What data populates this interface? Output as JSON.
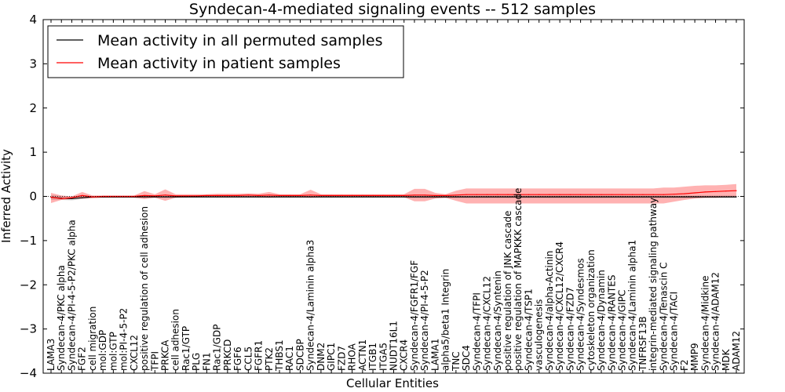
{
  "chart_data": {
    "type": "line",
    "title": "Syndecan-4-mediated signaling events -- 512 samples",
    "xlabel": "Cellular Entities",
    "ylabel": "Inferred Activity",
    "ylim": [
      -4,
      4
    ],
    "yticks": [
      4,
      3,
      2,
      1,
      0,
      -1,
      -2,
      -3,
      -4
    ],
    "ytick_labels": [
      "4",
      "3",
      "2",
      "1",
      "0",
      "−1",
      "−2",
      "−3",
      "−4"
    ],
    "legend": {
      "placement": "top-left",
      "entries": [
        {
          "label": "Mean activity in all permuted samples",
          "color": "#000000"
        },
        {
          "label": "Mean activity in patient samples",
          "color": "#ff0000"
        }
      ]
    },
    "categories": [
      "LAMA3",
      "Syndecan-4/PKC alpha",
      "Syndecan-4/PI-4-5-P2/PKC alpha",
      "FGF2",
      "cell migration",
      "mol:GDP",
      "mol:GTP",
      "mol:PI-4-5-P2",
      "CXCL12",
      "positive regulation of cell adhesion",
      "TFPI",
      "PRKCA",
      "cell adhesion",
      "Rac1/GTP",
      "PLG",
      "FN1",
      "Rac1/GDP",
      "PRKCD",
      "FGF6",
      "CCL5",
      "FGFR1",
      "PTK2",
      "THBS1",
      "RAC1",
      "SDCBP",
      "Syndecan-4/Laminin alpha3",
      "DNM2",
      "GIPC1",
      "FZD7",
      "RHOA",
      "ACTN1",
      "ITGB1",
      "ITGA5",
      "NUDT16L1",
      "CXCR4",
      "Syndecan-4/FGFR1/FGF",
      "Syndecan-4/PI-4-5-P2",
      "LAMA1",
      "alpha5/beta1 Integrin",
      "TNC",
      "SDC4",
      "Syndecan-4/TFPI",
      "Syndecan-4/CXCL12",
      "Syndecan-4/Syntenin",
      "positive regulation of JNK cascade",
      "positive regulation of MAPKKK cascade",
      "Syndecan-4/TSP1",
      "vasculogenesis",
      "Syndecan-4/alpha-Actinin",
      "Syndecan-4/CXCL12/CXCR4",
      "Syndecan-4/FZD7",
      "Syndecan-4/Syndesmos",
      "cytoskeleton organization",
      "Syndecan-4/Dynamin",
      "Syndecan-4/RANTES",
      "Syndecan-4/GIPC",
      "Syndecan-4/Laminin alpha1",
      "TNFRSF13B",
      "integrin-mediated signaling pathway",
      "Syndecan-4/Tenascin C",
      "Syndecan-4/TACI",
      "F2",
      "MMP9",
      "Syndecan-4/Midkine",
      "Syndecan-4/ADAM12",
      "MDK",
      "ADAM12"
    ],
    "series": [
      {
        "name": "Mean activity in all permuted samples",
        "color": "#000000",
        "values": [
          -0.02,
          -0.04,
          -0.05,
          -0.03,
          -0.01,
          -0.01,
          -0.01,
          -0.01,
          -0.01,
          -0.01,
          -0.01,
          -0.01,
          -0.01,
          -0.01,
          -0.01,
          -0.01,
          -0.01,
          -0.01,
          -0.01,
          -0.01,
          -0.01,
          -0.01,
          -0.01,
          -0.01,
          -0.01,
          -0.01,
          -0.01,
          -0.01,
          -0.01,
          -0.01,
          -0.01,
          -0.01,
          -0.01,
          -0.01,
          -0.01,
          -0.01,
          -0.01,
          -0.01,
          -0.01,
          -0.01,
          -0.01,
          -0.01,
          -0.01,
          -0.01,
          -0.01,
          -0.01,
          -0.01,
          -0.01,
          -0.01,
          -0.01,
          -0.01,
          -0.01,
          -0.01,
          -0.01,
          -0.01,
          -0.01,
          -0.01,
          -0.01,
          -0.01,
          -0.01,
          -0.01,
          -0.01,
          -0.01,
          -0.01,
          -0.01,
          -0.01,
          -0.01
        ],
        "band_low": [
          -0.08,
          -0.08,
          -0.09,
          -0.06,
          -0.04,
          -0.03,
          -0.03,
          -0.03,
          -0.03,
          -0.03,
          -0.03,
          -0.03,
          -0.03,
          -0.03,
          -0.03,
          -0.03,
          -0.03,
          -0.03,
          -0.03,
          -0.03,
          -0.03,
          -0.03,
          -0.03,
          -0.03,
          -0.03,
          -0.03,
          -0.03,
          -0.03,
          -0.03,
          -0.03,
          -0.03,
          -0.03,
          -0.03,
          -0.03,
          -0.03,
          -0.04,
          -0.04,
          -0.04,
          -0.04,
          -0.04,
          -0.04,
          -0.04,
          -0.04,
          -0.04,
          -0.04,
          -0.04,
          -0.04,
          -0.04,
          -0.04,
          -0.04,
          -0.04,
          -0.04,
          -0.04,
          -0.04,
          -0.04,
          -0.04,
          -0.04,
          -0.04,
          -0.04,
          -0.04,
          -0.04,
          -0.04,
          -0.04,
          -0.04,
          -0.04,
          -0.04,
          -0.04
        ],
        "band_high": [
          0.03,
          0.01,
          0.0,
          0.01,
          0.01,
          0.01,
          0.01,
          0.01,
          0.01,
          0.01,
          0.01,
          0.01,
          0.01,
          0.01,
          0.01,
          0.01,
          0.01,
          0.01,
          0.01,
          0.01,
          0.01,
          0.01,
          0.01,
          0.01,
          0.01,
          0.01,
          0.01,
          0.01,
          0.01,
          0.01,
          0.01,
          0.01,
          0.01,
          0.01,
          0.01,
          0.02,
          0.02,
          0.02,
          0.02,
          0.02,
          0.02,
          0.02,
          0.02,
          0.02,
          0.02,
          0.02,
          0.02,
          0.02,
          0.02,
          0.02,
          0.02,
          0.02,
          0.02,
          0.02,
          0.02,
          0.02,
          0.02,
          0.02,
          0.02,
          0.02,
          0.02,
          0.02,
          0.02,
          0.02,
          0.02,
          0.02,
          0.02
        ]
      },
      {
        "name": "Mean activity in patient samples",
        "color": "#ff0000",
        "values": [
          -0.02,
          -0.05,
          -0.03,
          0.02,
          -0.01,
          0.0,
          0.0,
          0.0,
          0.0,
          0.02,
          0.01,
          0.03,
          0.01,
          0.01,
          0.01,
          0.02,
          0.02,
          0.02,
          0.02,
          0.03,
          0.02,
          0.03,
          0.02,
          0.02,
          0.02,
          0.03,
          0.02,
          0.02,
          0.02,
          0.02,
          0.02,
          0.02,
          0.02,
          0.02,
          0.02,
          0.03,
          0.03,
          0.02,
          0.02,
          0.03,
          0.04,
          0.04,
          0.04,
          0.04,
          0.04,
          0.04,
          0.04,
          0.04,
          0.04,
          0.04,
          0.04,
          0.04,
          0.04,
          0.04,
          0.04,
          0.04,
          0.04,
          0.04,
          0.04,
          0.04,
          0.05,
          0.06,
          0.08,
          0.1,
          0.11,
          0.12,
          0.13
        ],
        "band_low": [
          -0.15,
          -0.08,
          -0.06,
          -0.05,
          -0.04,
          -0.03,
          -0.03,
          -0.03,
          -0.03,
          -0.06,
          -0.03,
          -0.1,
          -0.03,
          -0.02,
          -0.02,
          -0.02,
          -0.02,
          -0.02,
          -0.02,
          -0.02,
          -0.02,
          -0.03,
          -0.02,
          -0.02,
          -0.02,
          -0.03,
          -0.02,
          -0.02,
          -0.02,
          -0.02,
          -0.02,
          -0.02,
          -0.02,
          -0.02,
          -0.02,
          -0.11,
          -0.11,
          -0.05,
          -0.03,
          -0.1,
          -0.16,
          -0.16,
          -0.16,
          -0.16,
          -0.16,
          -0.16,
          -0.16,
          -0.16,
          -0.16,
          -0.16,
          -0.16,
          -0.16,
          -0.16,
          -0.16,
          -0.16,
          -0.16,
          -0.16,
          -0.16,
          -0.16,
          -0.16,
          -0.12,
          -0.08,
          -0.05,
          -0.03,
          -0.03,
          -0.02,
          -0.02
        ],
        "band_high": [
          0.08,
          0.02,
          0.0,
          0.1,
          0.02,
          0.02,
          0.02,
          0.02,
          0.02,
          0.12,
          0.05,
          0.16,
          0.05,
          0.05,
          0.05,
          0.05,
          0.06,
          0.06,
          0.06,
          0.07,
          0.06,
          0.1,
          0.05,
          0.05,
          0.05,
          0.15,
          0.05,
          0.05,
          0.05,
          0.05,
          0.05,
          0.05,
          0.05,
          0.05,
          0.05,
          0.17,
          0.17,
          0.08,
          0.05,
          0.13,
          0.18,
          0.18,
          0.18,
          0.18,
          0.18,
          0.18,
          0.18,
          0.18,
          0.18,
          0.18,
          0.18,
          0.18,
          0.18,
          0.18,
          0.18,
          0.18,
          0.18,
          0.18,
          0.18,
          0.2,
          0.2,
          0.22,
          0.24,
          0.25,
          0.25,
          0.26,
          0.28
        ]
      }
    ]
  }
}
